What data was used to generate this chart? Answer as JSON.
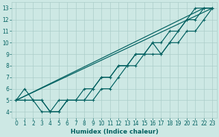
{
  "xlabel": "Humidex (Indice chaleur)",
  "xlim": [
    -0.5,
    23.5
  ],
  "ylim": [
    3.5,
    13.5
  ],
  "xticks": [
    0,
    1,
    2,
    3,
    4,
    5,
    6,
    7,
    8,
    9,
    10,
    11,
    12,
    13,
    14,
    15,
    16,
    17,
    18,
    19,
    20,
    21,
    22,
    23
  ],
  "yticks": [
    4,
    5,
    6,
    7,
    8,
    9,
    10,
    11,
    12,
    13
  ],
  "background_color": "#cde8e4",
  "grid_color": "#aaccc8",
  "line_color": "#006060",
  "smooth_line1_x": [
    0,
    23
  ],
  "smooth_line1_y": [
    5,
    13
  ],
  "smooth_line2_x": [
    0,
    22
  ],
  "smooth_line2_y": [
    5,
    13
  ],
  "jagged_line1_x": [
    0,
    1,
    2,
    3,
    4,
    5,
    6,
    7,
    8,
    9,
    10,
    11,
    12,
    13,
    14,
    15,
    16,
    17,
    18,
    19,
    20,
    21,
    22,
    23
  ],
  "jagged_line1_y": [
    5,
    6,
    5,
    5,
    4,
    4,
    5,
    5,
    5,
    6,
    7,
    7,
    8,
    8,
    9,
    9,
    10,
    9,
    10,
    11,
    12,
    13,
    13,
    13
  ],
  "jagged_line2_x": [
    0,
    1,
    2,
    3,
    4,
    5,
    6,
    7,
    8,
    9,
    10,
    11,
    12,
    13,
    14,
    15,
    16,
    17,
    18,
    19,
    20,
    21,
    22,
    23
  ],
  "jagged_line2_y": [
    5,
    5,
    5,
    4,
    4,
    5,
    5,
    5,
    5,
    5,
    6,
    6,
    7,
    8,
    8,
    9,
    9,
    9,
    10,
    10,
    11,
    11,
    12,
    13
  ],
  "jagged_line3_x": [
    0,
    1,
    2,
    3,
    4,
    5,
    6,
    7,
    8,
    9,
    10,
    11,
    12,
    13,
    14,
    15,
    16,
    17,
    18,
    19,
    20,
    21,
    22,
    23
  ],
  "jagged_line3_y": [
    5,
    5,
    5,
    5,
    4,
    4,
    5,
    5,
    6,
    6,
    7,
    7,
    8,
    8,
    9,
    9,
    10,
    10,
    11,
    11,
    12,
    12,
    13,
    13
  ],
  "font_size": 6.5,
  "tick_font_size": 5.5,
  "line_width": 0.9,
  "marker_size": 3.0
}
